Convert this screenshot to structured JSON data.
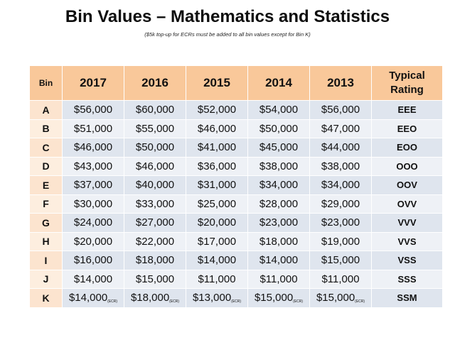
{
  "title": "Bin Values – Mathematics and Statistics",
  "subtitle": "($5k top-up for ECRs must be added to all bin values except for Bin K)",
  "table": {
    "headers": {
      "bin": "Bin",
      "years": [
        "2017",
        "2016",
        "2015",
        "2014",
        "2013"
      ],
      "rating": "Typical Rating"
    },
    "ecr_label": "(ECR)",
    "rows": [
      {
        "bin": "A",
        "values": [
          "$56,000",
          "$60,000",
          "$52,000",
          "$54,000",
          "$56,000"
        ],
        "rating": "EEE"
      },
      {
        "bin": "B",
        "values": [
          "$51,000",
          "$55,000",
          "$46,000",
          "$50,000",
          "$47,000"
        ],
        "rating": "EEO"
      },
      {
        "bin": "C",
        "values": [
          "$46,000",
          "$50,000",
          "$41,000",
          "$45,000",
          "$44,000"
        ],
        "rating": "EOO"
      },
      {
        "bin": "D",
        "values": [
          "$43,000",
          "$46,000",
          "$36,000",
          "$38,000",
          "$38,000"
        ],
        "rating": "OOO"
      },
      {
        "bin": "E",
        "values": [
          "$37,000",
          "$40,000",
          "$31,000",
          "$34,000",
          "$34,000"
        ],
        "rating": "OOV"
      },
      {
        "bin": "F",
        "values": [
          "$30,000",
          "$33,000",
          "$25,000",
          "$28,000",
          "$29,000"
        ],
        "rating": "OVV"
      },
      {
        "bin": "G",
        "values": [
          "$24,000",
          "$27,000",
          "$20,000",
          "$23,000",
          "$23,000"
        ],
        "rating": "VVV"
      },
      {
        "bin": "H",
        "values": [
          "$20,000",
          "$22,000",
          "$17,000",
          "$18,000",
          "$19,000"
        ],
        "rating": "VVS"
      },
      {
        "bin": "I",
        "values": [
          "$16,000",
          "$18,000",
          "$14,000",
          "$14,000",
          "$15,000"
        ],
        "rating": "VSS"
      },
      {
        "bin": "J",
        "values": [
          "$14,000",
          "$15,000",
          "$11,000",
          "$11,000",
          "$11,000"
        ],
        "rating": "SSS"
      },
      {
        "bin": "K",
        "values": [
          "$14,000",
          "$18,000",
          "$13,000",
          "$15,000",
          "$15,000"
        ],
        "rating": "SSM",
        "ecr": true
      }
    ]
  }
}
